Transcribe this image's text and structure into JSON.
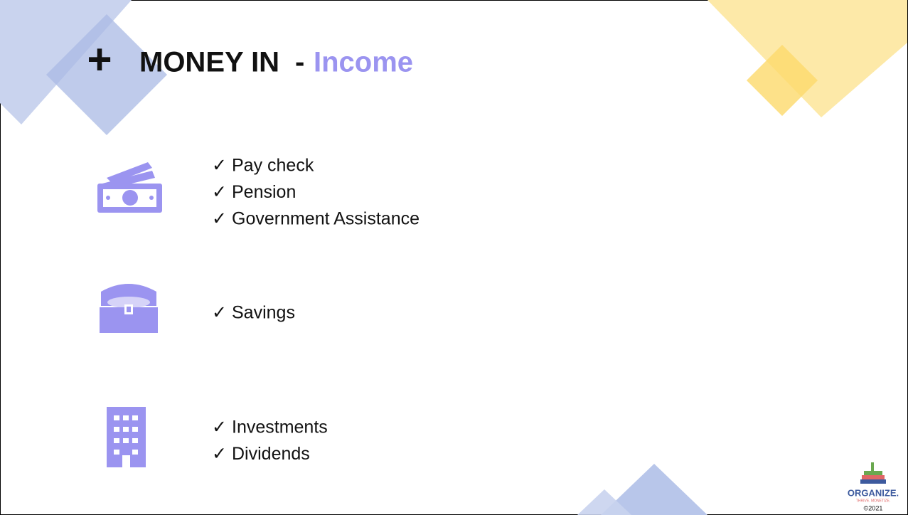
{
  "slide": {
    "title": {
      "plus": "+",
      "main": "MONEY IN",
      "dash": "-",
      "accent": "Income"
    },
    "bullet": "✓",
    "groups": [
      {
        "items": [
          "Pay check",
          "Pension",
          "Government Assistance"
        ]
      },
      {
        "items": [
          "Savings"
        ]
      },
      {
        "items": [
          "Investments",
          "Dividends"
        ]
      }
    ],
    "logo": {
      "name": "ORGANIZE.",
      "tagline": "THRIVE. MONETIZE.",
      "copyright": "©2021"
    }
  }
}
